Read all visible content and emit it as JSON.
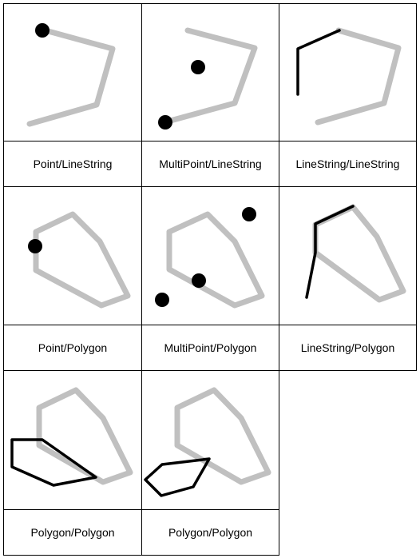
{
  "labels": {
    "c1": "Point/LineString",
    "c2": "MultiPoint/LineString",
    "c3": "LineString/LineString",
    "c4": "Point/Polygon",
    "c5": "MultiPoint/Polygon",
    "c6": "LineString/Polygon",
    "c7": "Polygon/Polygon",
    "c8": "Polygon/Polygon"
  },
  "colors": {
    "grey_shape": "#c0c0c0",
    "black_shape": "#000000",
    "border": "#000000"
  }
}
